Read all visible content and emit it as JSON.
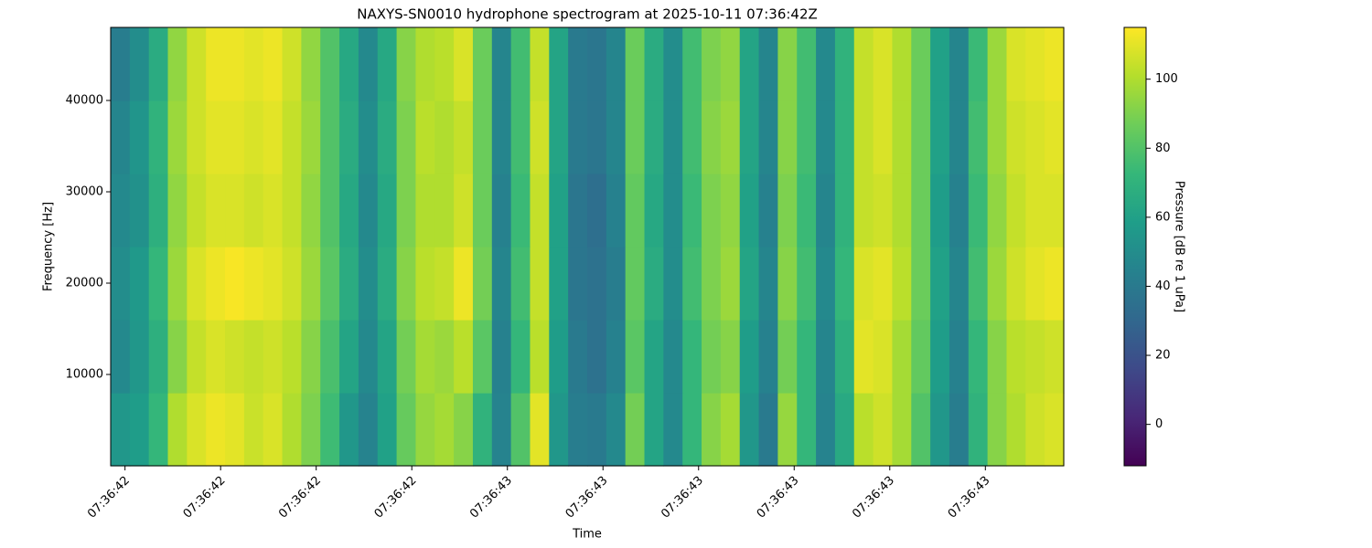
{
  "chart_data": {
    "type": "spectrogram",
    "title": "NAXYS-SN0010 hydrophone spectrogram at 2025-10-11 07:36:42Z",
    "xlabel": "Time",
    "ylabel": "Frequency [Hz]",
    "colorbar_label": "Pressure [dB re 1 uPa]",
    "colormap": "viridis",
    "xlim": [
      42.585,
      43.582
    ],
    "xticks": [
      {
        "value": 42.6,
        "label": "07:36:42"
      },
      {
        "value": 42.7,
        "label": "07:36:42"
      },
      {
        "value": 42.8,
        "label": "07:36:42"
      },
      {
        "value": 42.9,
        "label": "07:36:42"
      },
      {
        "value": 43.0,
        "label": "07:36:43"
      },
      {
        "value": 43.1,
        "label": "07:36:43"
      },
      {
        "value": 43.2,
        "label": "07:36:43"
      },
      {
        "value": 43.3,
        "label": "07:36:43"
      },
      {
        "value": 43.4,
        "label": "07:36:43"
      },
      {
        "value": 43.5,
        "label": "07:36:43"
      }
    ],
    "ylim": [
      0,
      48000
    ],
    "yticks": [
      10000,
      20000,
      30000,
      40000
    ],
    "clim": [
      -12,
      115
    ],
    "cticks": [
      0,
      20,
      40,
      60,
      80,
      100
    ],
    "z": [
      [
        55,
        58,
        72,
        100,
        108,
        112,
        110,
        105,
        108,
        100,
        90,
        75,
        55,
        45,
        60,
        85,
        95,
        98,
        92,
        70,
        45,
        80,
        110,
        55,
        42,
        40,
        48,
        88,
        62,
        48,
        72,
        92,
        98,
        55,
        40,
        95,
        72,
        45,
        65,
        102,
        106,
        98,
        80,
        55,
        42,
        70,
        92,
        100,
        106,
        108
      ],
      [
        48,
        55,
        68,
        92,
        104,
        108,
        106,
        104,
        106,
        102,
        92,
        78,
        62,
        48,
        62,
        88,
        98,
        96,
        102,
        82,
        44,
        72,
        102,
        58,
        40,
        36,
        44,
        82,
        62,
        48,
        72,
        88,
        92,
        58,
        44,
        88,
        72,
        46,
        68,
        110,
        108,
        98,
        84,
        58,
        44,
        72,
        92,
        102,
        104,
        106
      ],
      [
        50,
        56,
        72,
        96,
        108,
        112,
        114,
        112,
        110,
        106,
        96,
        82,
        66,
        50,
        66,
        92,
        102,
        104,
        112,
        88,
        46,
        76,
        104,
        60,
        38,
        36,
        42,
        84,
        66,
        50,
        76,
        90,
        96,
        62,
        46,
        92,
        76,
        48,
        72,
        108,
        110,
        102,
        86,
        60,
        46,
        76,
        96,
        106,
        110,
        112
      ],
      [
        48,
        52,
        68,
        94,
        104,
        108,
        108,
        106,
        108,
        104,
        94,
        80,
        64,
        48,
        64,
        90,
        100,
        100,
        106,
        86,
        44,
        74,
        104,
        60,
        38,
        34,
        44,
        84,
        64,
        50,
        74,
        90,
        94,
        60,
        44,
        90,
        74,
        46,
        70,
        104,
        106,
        100,
        86,
        58,
        44,
        74,
        94,
        104,
        108,
        108
      ],
      [
        46,
        54,
        70,
        96,
        106,
        110,
        110,
        108,
        110,
        104,
        96,
        80,
        66,
        50,
        66,
        90,
        102,
        100,
        104,
        86,
        46,
        76,
        106,
        62,
        40,
        38,
        46,
        86,
        66,
        50,
        76,
        92,
        96,
        62,
        46,
        92,
        76,
        48,
        70,
        104,
        108,
        100,
        86,
        60,
        46,
        76,
        96,
        106,
        108,
        110
      ],
      [
        42,
        50,
        66,
        94,
        106,
        112,
        112,
        110,
        112,
        106,
        94,
        80,
        64,
        48,
        64,
        92,
        100,
        102,
        108,
        86,
        46,
        76,
        104,
        62,
        40,
        38,
        46,
        86,
        66,
        50,
        76,
        90,
        94,
        62,
        46,
        92,
        76,
        48,
        70,
        104,
        108,
        100,
        86,
        60,
        46,
        74,
        96,
        108,
        110,
        112
      ]
    ]
  }
}
